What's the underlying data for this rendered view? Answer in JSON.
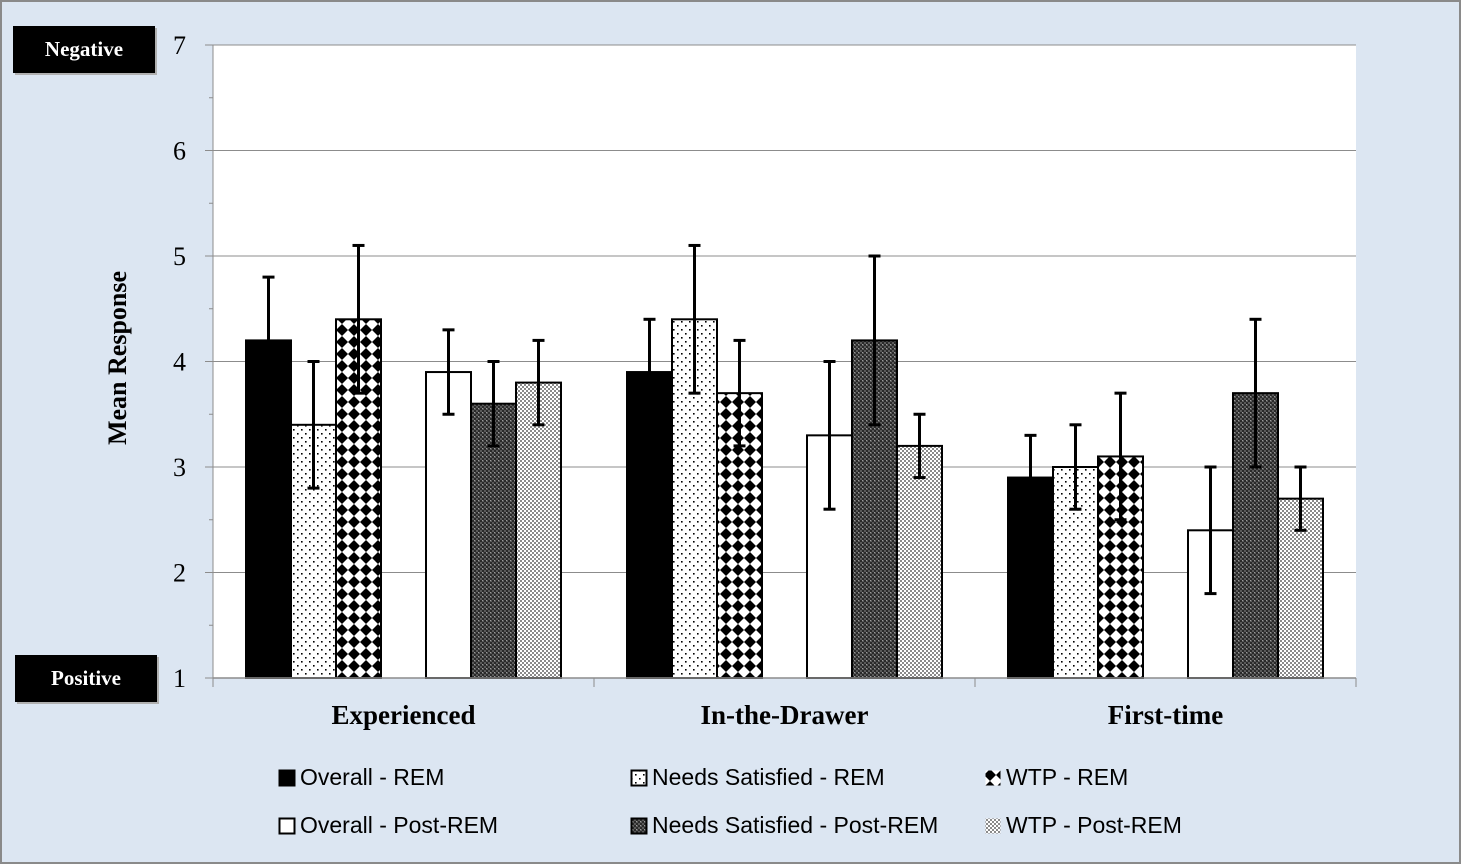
{
  "labels": {
    "negative": "Negative",
    "positive": "Positive"
  },
  "chart_data": {
    "type": "bar",
    "ylabel": "Mean Response",
    "xlabel": "",
    "ylim": [
      1,
      7
    ],
    "yticks": [
      "1",
      "2",
      "3",
      "4",
      "5",
      "6",
      "7"
    ],
    "grid": true,
    "legend_position": "bottom",
    "categories": [
      "Experienced",
      "In-the-Drawer",
      "First-time"
    ],
    "series": [
      {
        "name": "Overall - REM",
        "pattern": "solid-black",
        "values": [
          4.2,
          3.9,
          2.9
        ],
        "err_low": [
          3.6,
          3.4,
          2.5
        ],
        "err_high": [
          4.8,
          4.4,
          3.3
        ]
      },
      {
        "name": "Needs Satisfied - REM",
        "pattern": "dots",
        "values": [
          3.4,
          4.4,
          3.0
        ],
        "err_low": [
          2.8,
          3.7,
          2.6
        ],
        "err_high": [
          4.0,
          5.1,
          3.4
        ]
      },
      {
        "name": "WTP - REM",
        "pattern": "diamonds",
        "values": [
          4.4,
          3.7,
          3.1
        ],
        "err_low": [
          3.7,
          3.2,
          2.5
        ],
        "err_high": [
          5.1,
          4.2,
          3.7
        ]
      },
      {
        "name": "Overall - Post-REM",
        "pattern": "hollow",
        "values": [
          3.9,
          3.3,
          2.4
        ],
        "err_low": [
          3.5,
          2.6,
          1.8
        ],
        "err_high": [
          4.3,
          4.0,
          3.0
        ]
      },
      {
        "name": "Needs Satisfied - Post-REM",
        "pattern": "dark-checker",
        "values": [
          3.6,
          4.2,
          3.7
        ],
        "err_low": [
          3.2,
          3.4,
          3.0
        ],
        "err_high": [
          4.0,
          5.0,
          4.4
        ]
      },
      {
        "name": "WTP - Post-REM",
        "pattern": "light-checker",
        "values": [
          3.8,
          3.2,
          2.7
        ],
        "err_low": [
          3.4,
          2.9,
          2.4
        ],
        "err_high": [
          4.2,
          3.5,
          3.0
        ]
      }
    ]
  }
}
